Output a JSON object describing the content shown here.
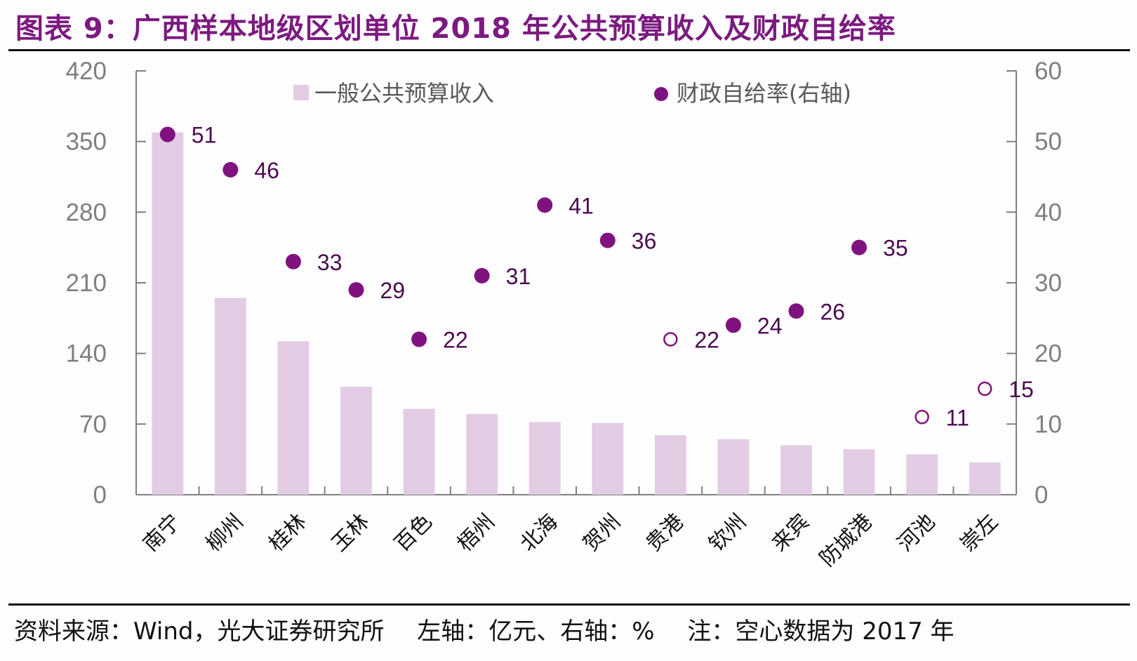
{
  "header": {
    "title": "图表 9：广西样本地级区划单位 2018 年公共预算收入及财政自给率"
  },
  "footer": {
    "source": "资料来源：Wind，光大证券研究所",
    "axis_note": "左轴：亿元、右轴：%",
    "note": "注：空心数据为 2017 年"
  },
  "colors": {
    "title": "#7b1a7f",
    "bar": "#e2cce4",
    "point": "#80127f",
    "label": "#4b0a4f",
    "axis": "#7f7f7f"
  },
  "chart_data": {
    "type": "bar+scatter",
    "title": "广西样本地级区划单位 2018 年公共预算收入及财政自给率",
    "categories": [
      "南宁",
      "柳州",
      "桂林",
      "玉林",
      "百色",
      "梧州",
      "北海",
      "贺州",
      "贵港",
      "钦州",
      "来宾",
      "防城港",
      "河池",
      "崇左"
    ],
    "series": [
      {
        "name": "一般公共预算收入",
        "type": "bar",
        "axis": "left",
        "values": [
          359,
          195,
          152,
          107,
          85,
          80,
          72,
          71,
          59,
          55,
          49,
          45,
          40,
          32
        ]
      },
      {
        "name": "财政自给率(右轴)",
        "type": "scatter",
        "axis": "right",
        "values": [
          51,
          46,
          33,
          29,
          22,
          31,
          41,
          36,
          22,
          24,
          26,
          35,
          11,
          15
        ],
        "hollow": [
          false,
          false,
          false,
          false,
          false,
          false,
          false,
          false,
          true,
          false,
          false,
          false,
          true,
          true
        ]
      }
    ],
    "left_axis": {
      "label": "亿元",
      "ylim": [
        0,
        420
      ],
      "ticks": [
        0,
        70,
        140,
        210,
        280,
        350,
        420
      ]
    },
    "right_axis": {
      "label": "%",
      "ylim": [
        0,
        60
      ],
      "ticks": [
        0,
        10,
        20,
        30,
        40,
        50,
        60
      ]
    },
    "legend": {
      "placement": "top-center",
      "entries": [
        "一般公共预算收入",
        "财政自给率(右轴)"
      ]
    },
    "grid": false
  }
}
